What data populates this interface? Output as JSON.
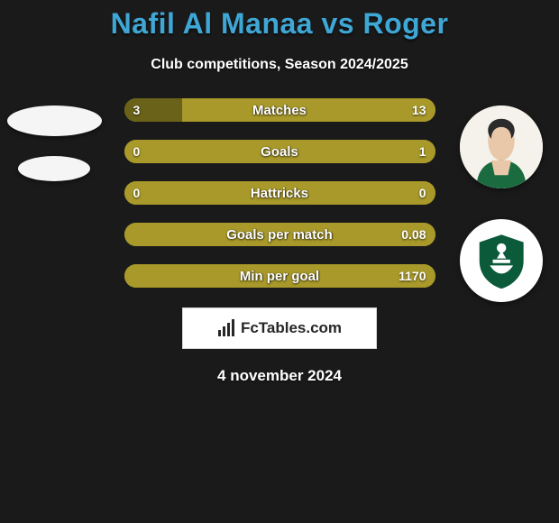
{
  "header": {
    "title": "Nafil Al Manaa vs Roger",
    "title_color": "#3fa7d6",
    "subtitle": "Club competitions, Season 2024/2025"
  },
  "colors": {
    "background": "#1a1a1a",
    "bar_left": "#a8992a",
    "bar_right": "#a8992a",
    "bar_track": "#a8992a",
    "text": "#ffffff"
  },
  "stats": [
    {
      "label": "Matches",
      "left_value": "3",
      "right_value": "13",
      "left_pct": 18.75,
      "right_pct": 81.25,
      "left_color": "#6b6219",
      "right_color": "#a8992a"
    },
    {
      "label": "Goals",
      "left_value": "0",
      "right_value": "1",
      "left_pct": 0,
      "right_pct": 100,
      "left_color": "#6b6219",
      "right_color": "#a8992a"
    },
    {
      "label": "Hattricks",
      "left_value": "0",
      "right_value": "0",
      "left_pct": 50,
      "right_pct": 50,
      "left_color": "#a8992a",
      "right_color": "#a8992a"
    },
    {
      "label": "Goals per match",
      "left_value": "",
      "right_value": "0.08",
      "left_pct": 0,
      "right_pct": 100,
      "left_color": "#6b6219",
      "right_color": "#a8992a"
    },
    {
      "label": "Min per goal",
      "left_value": "",
      "right_value": "1170",
      "left_pct": 0,
      "right_pct": 100,
      "left_color": "#6b6219",
      "right_color": "#a8992a"
    }
  ],
  "footer": {
    "site_name": "FcTables.com",
    "date": "4 november 2024"
  }
}
